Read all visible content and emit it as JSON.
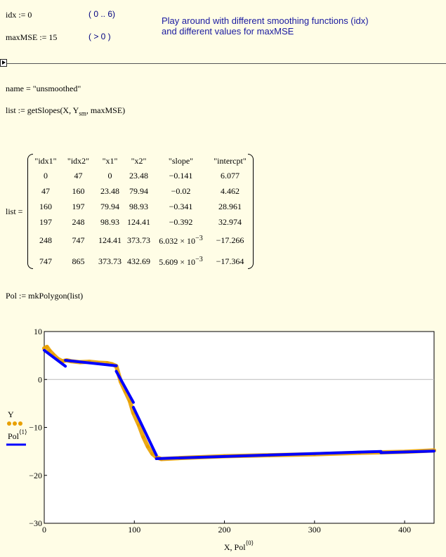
{
  "header": {
    "idx_def": "idx := 0",
    "idx_range": "( 0 .. 6)",
    "maxmse_def": "maxMSE := 15",
    "maxmse_range": "(  > 0  )",
    "note_line1": "Play around with different smoothing functions (idx)",
    "note_line2": "and different values for maxMSE"
  },
  "worksheet": {
    "name_eq": "name = \"unsmoothed\"",
    "list_def_pre": "list := getSlopes(X, Y",
    "list_def_sub": "sm",
    "list_def_post": ", maxMSE)",
    "list_eq": "list =",
    "pol_def": "Pol := mkPolygon(list)"
  },
  "matrix": {
    "headers": [
      "\"idx1\"",
      "\"idx2\"",
      "\"x1\"",
      "\"x2\"",
      "\"slope\"",
      "\"intercpt\""
    ],
    "rows": [
      [
        "0",
        "47",
        "0",
        "23.48",
        "−0.141",
        "6.077"
      ],
      [
        "47",
        "160",
        "23.48",
        "79.94",
        "−0.02",
        "4.462"
      ],
      [
        "160",
        "197",
        "79.94",
        "98.93",
        "−0.341",
        "28.961"
      ],
      [
        "197",
        "248",
        "98.93",
        "124.41",
        "−0.392",
        "32.974"
      ],
      [
        "248",
        "747",
        "124.41",
        "373.73",
        "6.032 × 10",
        "−17.266"
      ],
      [
        "747",
        "865",
        "373.73",
        "432.69",
        "5.609 × 10",
        "−17.364"
      ]
    ],
    "exponent": "−3"
  },
  "chart_data": {
    "type": "line",
    "xlabel": "X, Pol",
    "xlabel_sup": "⟨0⟩",
    "xlim": [
      0,
      432.69
    ],
    "ylim": [
      -30,
      10
    ],
    "x_ticks": [
      "0",
      "100",
      "200",
      "300",
      "400"
    ],
    "y_ticks": [
      "10",
      "0",
      "−10",
      "−20",
      "−30"
    ],
    "legend": [
      {
        "name": "Y",
        "color": "#e8a000",
        "style": "dots"
      },
      {
        "name": "Pol",
        "sup": "⟨1⟩",
        "color": "#0000ff",
        "style": "line"
      }
    ],
    "series": [
      {
        "name": "Y",
        "color": "#e8a000",
        "x": [
          0,
          3,
          6,
          10,
          15,
          20,
          25,
          30,
          40,
          50,
          60,
          70,
          75,
          79.94,
          85,
          90,
          95,
          98.93,
          105,
          110,
          115,
          120,
          124.41,
          130,
          150,
          200,
          250,
          300,
          350,
          373.73,
          400,
          432.69
        ],
        "y": [
          6.5,
          6.8,
          6.0,
          5.2,
          4.3,
          3.8,
          4.0,
          3.8,
          3.6,
          3.7,
          3.5,
          3.4,
          3.2,
          2.8,
          -0.5,
          -2.5,
          -4.5,
          -7.0,
          -9.5,
          -12.0,
          -14.0,
          -15.5,
          -16.2,
          -16.6,
          -16.4,
          -16.0,
          -15.8,
          -15.6,
          -15.3,
          -15.2,
          -15.1,
          -14.8
        ]
      },
      {
        "name": "Pol",
        "color": "#0000ff",
        "segments": [
          [
            [
              0,
              6.077
            ],
            [
              23.48,
              2.766
            ]
          ],
          [
            [
              23.48,
              3.992
            ],
            [
              79.94,
              2.863
            ]
          ],
          [
            [
              79.94,
              1.701
            ],
            [
              98.93,
              -4.775
            ]
          ],
          [
            [
              98.93,
              -5.806
            ],
            [
              124.41,
              -15.794
            ]
          ],
          [
            [
              124.41,
              -16.516
            ],
            [
              373.73,
              -15.012
            ]
          ],
          [
            [
              373.73,
              -15.268
            ],
            [
              432.69,
              -14.937
            ]
          ]
        ]
      }
    ]
  }
}
